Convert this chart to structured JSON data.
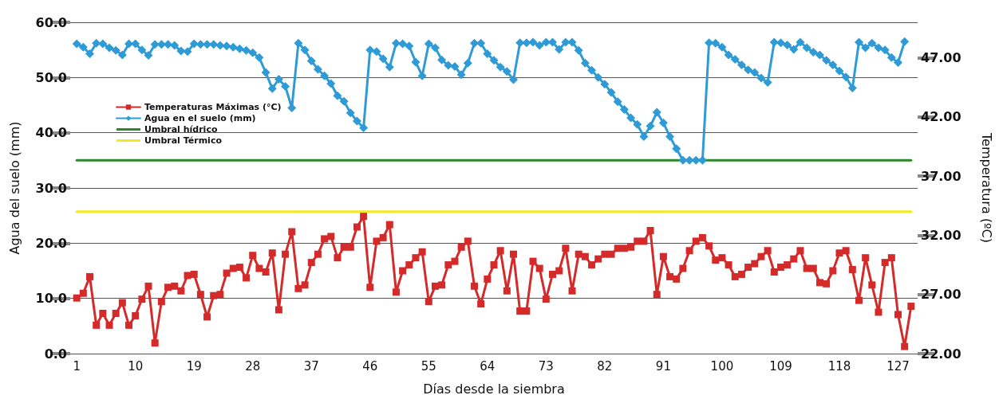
{
  "chart_data": {
    "type": "line",
    "xlabel": "Días desde la siembra",
    "ylabel": "Agua del suelo (mm)",
    "y2label": "Temperatura (ºC)",
    "x": [
      1,
      2,
      3,
      4,
      5,
      6,
      7,
      8,
      9,
      10,
      11,
      12,
      13,
      14,
      15,
      16,
      17,
      18,
      19,
      20,
      21,
      22,
      23,
      24,
      25,
      26,
      27,
      28,
      29,
      30,
      31,
      32,
      33,
      34,
      35,
      36,
      37,
      38,
      39,
      40,
      41,
      42,
      43,
      44,
      45,
      46,
      47,
      48,
      49,
      50,
      51,
      52,
      53,
      54,
      55,
      56,
      57,
      58,
      59,
      60,
      61,
      62,
      63,
      64,
      65,
      66,
      67,
      68,
      69,
      70,
      71,
      72,
      73,
      74,
      75,
      76,
      77,
      78,
      79,
      80,
      81,
      82,
      83,
      84,
      85,
      86,
      87,
      88,
      89,
      90,
      91,
      92,
      93,
      94,
      95,
      96,
      97,
      98,
      99,
      100,
      101,
      102,
      103,
      104,
      105,
      106,
      107,
      108,
      109,
      110,
      111,
      112,
      113,
      114,
      115,
      116,
      117,
      118,
      119,
      120,
      121,
      122,
      123,
      124,
      125,
      126,
      127,
      128,
      129
    ],
    "xlim": [
      0,
      130
    ],
    "xticks": [
      1,
      10,
      19,
      28,
      37,
      46,
      55,
      64,
      73,
      82,
      91,
      100,
      109,
      118,
      127
    ],
    "ylim": [
      0,
      60
    ],
    "yticks": [
      {
        "value": 0,
        "label": "0.0"
      },
      {
        "value": 10,
        "label": "10.0"
      },
      {
        "value": 20,
        "label": "20.0"
      },
      {
        "value": 30,
        "label": "30.0"
      },
      {
        "value": 40,
        "label": "40.0"
      },
      {
        "value": 50,
        "label": "50.0"
      },
      {
        "value": 60,
        "label": "60.0"
      }
    ],
    "y2lim": [
      22,
      50
    ],
    "y2ticks": [
      {
        "value": 22,
        "label": "22.00"
      },
      {
        "value": 27,
        "label": "27.00"
      },
      {
        "value": 32,
        "label": "32.00"
      },
      {
        "value": 37,
        "label": "37.00"
      },
      {
        "value": 42,
        "label": "42.00"
      },
      {
        "value": 47,
        "label": "47.00"
      }
    ],
    "grid": "y",
    "legend": "top left",
    "series": [
      {
        "name": "Temperaturas Máximas (°C)",
        "color": "#d42a2a",
        "axis": "y2",
        "marker": "square",
        "values": [
          26.7,
          27.1,
          28.5,
          24.4,
          25.4,
          24.4,
          25.4,
          26.3,
          24.4,
          25.2,
          26.6,
          27.7,
          22.9,
          26.4,
          27.6,
          27.7,
          27.3,
          28.6,
          28.7,
          27.0,
          25.1,
          26.9,
          27.0,
          28.8,
          29.2,
          29.3,
          28.4,
          30.3,
          29.2,
          28.9,
          30.5,
          25.7,
          30.4,
          32.3,
          27.5,
          27.8,
          29.7,
          30.4,
          31.7,
          31.9,
          30.1,
          31.0,
          31.0,
          32.7,
          33.6,
          27.6,
          31.5,
          31.8,
          32.9,
          27.2,
          29.0,
          29.5,
          30.1,
          30.6,
          26.4,
          27.7,
          27.8,
          29.5,
          29.8,
          31.0,
          31.5,
          27.7,
          26.2,
          28.3,
          29.5,
          30.7,
          27.3,
          30.4,
          25.6,
          25.6,
          29.8,
          29.2,
          26.6,
          28.7,
          29.0,
          30.9,
          27.3,
          30.4,
          30.2,
          29.5,
          30.0,
          30.4,
          30.4,
          30.9,
          30.9,
          31.0,
          31.5,
          31.5,
          32.4,
          27.0,
          30.2,
          28.5,
          28.3,
          29.2,
          30.7,
          31.5,
          31.8,
          31.1,
          29.9,
          30.1,
          29.5,
          28.5,
          28.7,
          29.3,
          29.6,
          30.2,
          30.7,
          28.9,
          29.3,
          29.5,
          30.0,
          30.7,
          29.2,
          29.2,
          28.0,
          27.9,
          29.0,
          30.5,
          30.7,
          29.1,
          26.5,
          30.1,
          27.8,
          25.5,
          29.7,
          30.1,
          25.3,
          22.6,
          26.0
        ]
      },
      {
        "name": "Agua en el suelo (mm)",
        "color": "#2e9bd6",
        "marker": "diamond",
        "x": [
          1,
          2,
          3,
          4,
          5,
          6,
          7,
          8,
          9,
          10,
          11,
          12,
          13,
          14,
          15,
          16,
          17,
          18,
          19,
          20,
          21,
          22,
          23,
          24,
          25,
          26,
          27,
          28,
          29,
          30,
          31,
          32,
          33,
          34,
          35,
          36,
          37,
          38,
          39,
          40,
          41,
          42,
          43,
          44,
          45,
          46,
          47,
          48,
          49,
          50,
          51,
          52,
          53,
          54,
          55,
          56,
          57,
          58,
          59,
          60,
          61,
          62,
          63,
          64,
          65,
          66,
          67,
          68,
          69,
          70,
          71,
          72,
          73,
          74,
          75,
          76,
          77,
          78,
          79,
          80,
          81,
          82,
          83,
          84,
          85,
          86,
          87,
          88,
          89,
          90,
          91,
          92,
          93,
          94,
          95,
          96,
          97,
          98,
          99,
          100,
          101,
          102,
          103,
          104,
          105,
          106,
          107,
          108,
          109,
          110,
          111,
          112,
          113,
          114,
          115,
          116,
          117,
          118,
          119,
          120,
          121,
          122,
          123,
          124,
          125,
          126,
          127,
          128
        ],
        "values": [
          56.1,
          55.5,
          54.3,
          56.2,
          56.1,
          55.4,
          54.9,
          54.1,
          56.1,
          56.1,
          55.0,
          54.0,
          56.0,
          56.0,
          56.0,
          55.8,
          54.8,
          54.7,
          56.1,
          56.0,
          56.0,
          56.0,
          55.8,
          55.7,
          55.5,
          55.2,
          54.9,
          54.5,
          53.6,
          50.9,
          48.0,
          49.7,
          48.4,
          44.5,
          56.2,
          55.0,
          53.0,
          51.5,
          50.3,
          48.9,
          46.7,
          45.7,
          43.6,
          42.1,
          40.9,
          55.0,
          54.7,
          53.4,
          51.9,
          56.2,
          56.1,
          55.7,
          52.8,
          50.3,
          56.1,
          55.4,
          53.2,
          52.2,
          52.0,
          50.5,
          52.6,
          56.2,
          56.2,
          54.3,
          53.1,
          51.9,
          51.1,
          49.6,
          56.3,
          56.3,
          56.4,
          55.8,
          56.4,
          56.4,
          55.1,
          56.4,
          56.4,
          54.9,
          52.6,
          51.3,
          50.0,
          48.8,
          47.3,
          45.6,
          44.2,
          42.7,
          41.5,
          39.3,
          41.2,
          43.7,
          41.8,
          39.3,
          37.1,
          35.0,
          35.0,
          35.0,
          35.0,
          56.3,
          56.2,
          55.5,
          54.1,
          53.3,
          52.3,
          51.4,
          50.9,
          49.9,
          49.1,
          56.4,
          56.3,
          55.9,
          55.1,
          56.4,
          55.4,
          54.6,
          54.1,
          53.1,
          52.3,
          51.2,
          50.1,
          48.1,
          56.4,
          55.4,
          56.2,
          55.4,
          55.0,
          53.6,
          52.7,
          56.5
        ]
      },
      {
        "name": "Umbral hídrico",
        "color": "#2a8a2a",
        "marker": "none",
        "x": [
          1,
          129
        ],
        "values": [
          35,
          35
        ]
      },
      {
        "name": "Umbral Térmico",
        "color": "#f2ea1c",
        "axis": "y2",
        "marker": "none",
        "x": [
          1,
          129
        ],
        "values": [
          34,
          34
        ]
      }
    ]
  }
}
